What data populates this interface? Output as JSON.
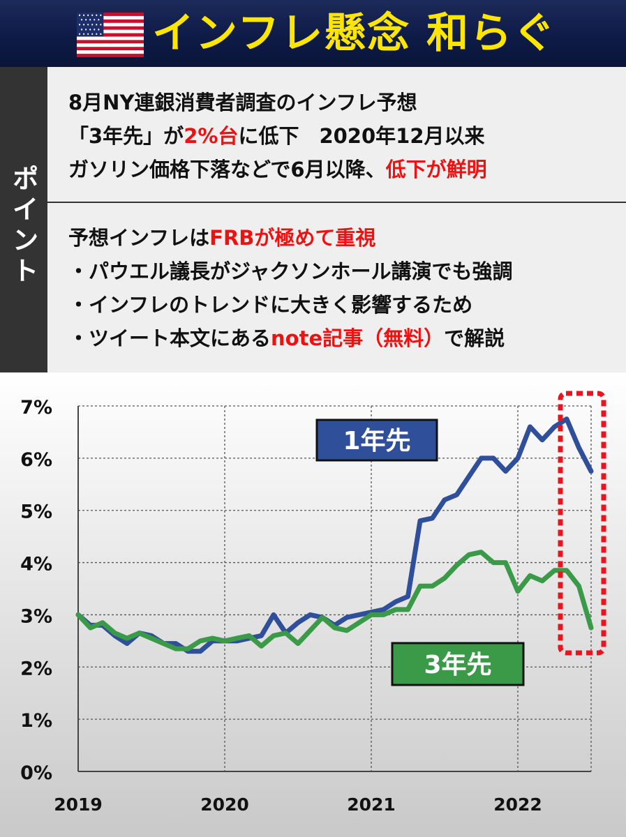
{
  "header": {
    "title": "インフレ懸念 和らぐ",
    "flag_icon": "us-flag-icon"
  },
  "side_label": "ポイント",
  "points": {
    "group1": [
      {
        "parts": [
          {
            "text": "8月NY連銀消費者調査のインフレ予想"
          }
        ]
      },
      {
        "parts": [
          {
            "text": "「3年先」が"
          },
          {
            "text": "2%台",
            "red": true
          },
          {
            "text": "に低下　2020年12月以来"
          }
        ]
      },
      {
        "parts": [
          {
            "text": "ガソリン価格下落などで6月以降、"
          },
          {
            "text": "低下が鮮明",
            "red": true
          }
        ]
      }
    ],
    "group2": [
      {
        "parts": [
          {
            "text": "予想インフレは"
          },
          {
            "text": "FRBが極めて重視",
            "red": true
          }
        ]
      },
      {
        "parts": [
          {
            "text": "・パウエル議長がジャクソンホール講演でも強調"
          }
        ]
      },
      {
        "parts": [
          {
            "text": "・インフレのトレンドに大きく影響するため"
          }
        ]
      },
      {
        "parts": [
          {
            "text": "・ツイート本文にある"
          },
          {
            "text": "note記事（無料）",
            "red": true
          },
          {
            "text": "で解説"
          }
        ]
      }
    ]
  },
  "colors": {
    "series1": "#2f4f9a",
    "series2": "#3a9a48",
    "highlight": "#e8141e",
    "accent_red": "#ee1111"
  },
  "chart_data": {
    "type": "line",
    "ylim": [
      0,
      7
    ],
    "yticks": [
      "0%",
      "1%",
      "2%",
      "3%",
      "4%",
      "5%",
      "6%",
      "7%"
    ],
    "xlim": [
      "2019-01",
      "2022-08"
    ],
    "xtick_labels": [
      "2019",
      "2020",
      "2021",
      "2022"
    ],
    "grid": true,
    "series": [
      {
        "name": "1年先",
        "values": [
          3.0,
          2.8,
          2.8,
          2.6,
          2.45,
          2.65,
          2.6,
          2.45,
          2.45,
          2.3,
          2.3,
          2.5,
          2.5,
          2.5,
          2.55,
          2.6,
          3.0,
          2.65,
          2.85,
          3.0,
          2.95,
          2.8,
          2.95,
          3.0,
          3.05,
          3.1,
          3.25,
          3.35,
          4.8,
          4.85,
          5.2,
          5.3,
          5.65,
          6.0,
          6.0,
          5.75,
          6.0,
          6.6,
          6.35,
          6.6,
          6.75,
          6.2,
          5.75
        ]
      },
      {
        "name": "3年先",
        "values": [
          3.0,
          2.75,
          2.85,
          2.65,
          2.55,
          2.65,
          2.55,
          2.45,
          2.35,
          2.35,
          2.5,
          2.55,
          2.5,
          2.55,
          2.6,
          2.4,
          2.6,
          2.65,
          2.45,
          2.7,
          2.95,
          2.75,
          2.7,
          2.85,
          3.0,
          3.0,
          3.1,
          3.1,
          3.55,
          3.55,
          3.7,
          3.95,
          4.15,
          4.2,
          4.0,
          4.0,
          3.45,
          3.75,
          3.65,
          3.85,
          3.85,
          3.55,
          2.75
        ]
      }
    ],
    "annotations": [
      {
        "series": "1年先",
        "label": "1年先"
      },
      {
        "series": "3年先",
        "label": "3年先"
      }
    ]
  }
}
